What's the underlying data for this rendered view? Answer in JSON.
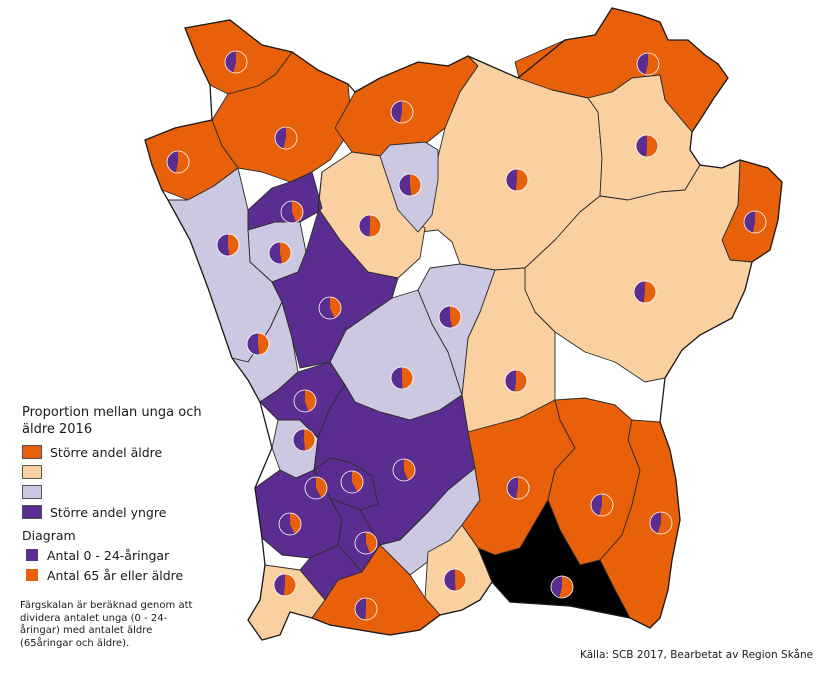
{
  "legend": {
    "title": "Proportion mellan unga och äldre 2016",
    "classes": [
      {
        "label": "Större andel äldre",
        "color": "#e8600a"
      },
      {
        "label": "",
        "color": "#fbd0a0"
      },
      {
        "label": "",
        "color": "#cdc8e2"
      },
      {
        "label": "Större andel yngre",
        "color": "#5b2d91"
      }
    ],
    "diagram_title": "Diagram",
    "diagram_items": [
      {
        "label": "Antal 0 - 24-åringar",
        "color": "#5b2d91"
      },
      {
        "label": "Antal 65 år eller äldre",
        "color": "#e8600a"
      }
    ]
  },
  "note": "Färgskalan är beräknad genom att dividera antalet unga (0 - 24-åringar) med antalet äldre (65åringar och äldre).",
  "source": "Källa: SCB 2017, Bearbetat av Region Skåne",
  "colors": {
    "older": "#e8600a",
    "light_older": "#fbd0a0",
    "light_younger": "#cdc8e2",
    "younger": "#5b2d91",
    "border": "#2b2b2b",
    "pie_young": "#5b2d91",
    "pie_old": "#e8600a"
  },
  "municipalities": [
    {
      "cls": "older",
      "young_share": 0.46
    },
    {
      "cls": "older",
      "young_share": 0.46
    },
    {
      "cls": "older",
      "young_share": 0.47
    },
    {
      "cls": "older",
      "young_share": 0.47
    },
    {
      "cls": "older",
      "young_share": 0.46
    },
    {
      "cls": "older",
      "young_share": 0.47
    },
    {
      "cls": "light_older",
      "young_share": 0.48
    },
    {
      "cls": "light_older",
      "young_share": 0.49
    },
    {
      "cls": "light_older",
      "young_share": 0.48
    },
    {
      "cls": "light_older",
      "young_share": 0.49
    },
    {
      "cls": "light_older",
      "young_share": 0.48
    },
    {
      "cls": "light_younger",
      "young_share": 0.52
    },
    {
      "cls": "light_younger",
      "young_share": 0.53
    },
    {
      "cls": "light_younger",
      "young_share": 0.52
    },
    {
      "cls": "light_younger",
      "young_share": 0.51
    },
    {
      "cls": "light_younger",
      "young_share": 0.53
    },
    {
      "cls": "light_younger",
      "young_share": 0.52
    },
    {
      "cls": "light_younger",
      "young_share": 0.52
    },
    {
      "cls": "younger",
      "young_share": 0.56
    },
    {
      "cls": "younger",
      "young_share": 0.57
    },
    {
      "cls": "younger",
      "young_share": 0.55
    },
    {
      "cls": "younger",
      "young_share": 0.58
    },
    {
      "cls": "younger",
      "young_share": 0.56
    },
    {
      "cls": "younger",
      "young_share": 0.57
    },
    {
      "cls": "younger",
      "young_share": 0.56
    },
    {
      "cls": "younger",
      "young_share": 0.58
    },
    {
      "cls": "light_younger",
      "young_share": 0.51
    },
    {
      "cls": "light_older",
      "young_share": 0.49
    },
    {
      "cls": "light_older",
      "young_share": 0.48
    },
    {
      "cls": "older",
      "young_share": 0.47
    },
    {
      "cls": "older",
      "young_share": 0.46
    },
    {
      "cls": "older",
      "young_share": 0.45
    },
    {
      "cls": "older",
      "young_share": 0.46
    }
  ]
}
